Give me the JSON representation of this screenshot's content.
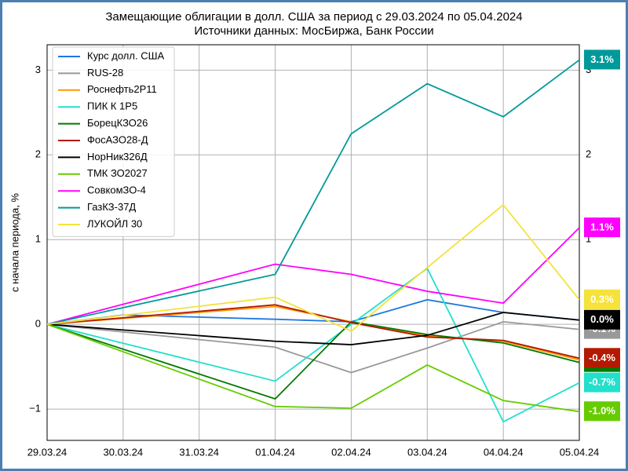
{
  "chart_data": {
    "type": "line",
    "title": "Замещающие облигации в долл. США за период с 29.03.2024 по 05.04.2024",
    "subtitle": "Источники данных: МосБиржа, Банк России",
    "y_label": "с начала периода, %",
    "categories": [
      "29.03.24",
      "30.03.24",
      "31.03.24",
      "01.04.24",
      "02.04.24",
      "03.04.24",
      "04.04.24",
      "05.04.24"
    ],
    "ylim": [
      -1.37,
      3.3
    ],
    "yticks": [
      {
        "value": -1,
        "label": "−1"
      },
      0,
      1,
      2,
      3
    ],
    "grid": true,
    "legend": "upper left",
    "series": [
      {
        "name": "Курс долл. США",
        "color": "#1f77e0",
        "x": [
          "29.03.24",
          "30.03.24",
          "01.04.24",
          "02.04.24",
          "03.04.24",
          "04.04.24",
          "05.04.24"
        ],
        "values": [
          0,
          0.11,
          0.06,
          0.03,
          0.29,
          0.14,
          0.05
        ]
      },
      {
        "name": "RUS-28",
        "color": "#999999",
        "x": [
          "29.03.24",
          "01.04.24",
          "02.04.24",
          "03.04.24",
          "04.04.24",
          "05.04.24"
        ],
        "values": [
          0,
          -0.27,
          -0.57,
          -0.28,
          0.03,
          -0.06
        ],
        "value_labels": [
          null,
          null,
          null,
          null,
          null,
          "-0.1%"
        ]
      },
      {
        "name": "Роснефть2Р11",
        "color": "#ff9900",
        "x": [
          "29.03.24",
          "01.04.24",
          "02.04.24",
          "03.04.24",
          "04.04.24",
          "05.04.24"
        ],
        "values": [
          0,
          0.21,
          0.03,
          -0.14,
          -0.2,
          -0.42
        ],
        "value_labels": [
          null,
          null,
          null,
          null,
          null,
          "-0.4%"
        ]
      },
      {
        "name": "ПИК К 1Р5",
        "color": "#22e0cc",
        "x": [
          "29.03.24",
          "01.04.24",
          "02.04.24",
          "03.04.24",
          "04.04.24",
          "05.04.24"
        ],
        "values": [
          0,
          -0.67,
          0.0,
          0.66,
          -1.15,
          -0.69
        ],
        "value_labels": [
          null,
          null,
          null,
          null,
          null,
          "-0.7%"
        ]
      },
      {
        "name": "БорецКЗО26",
        "color": "#007a00",
        "x": [
          "29.03.24",
          "01.04.24",
          "02.04.24",
          "03.04.24",
          "04.04.24",
          "05.04.24"
        ],
        "values": [
          0,
          -0.88,
          0.03,
          -0.12,
          -0.22,
          -0.45
        ],
        "value_labels": [
          null,
          null,
          null,
          null,
          null,
          "-0.4%"
        ]
      },
      {
        "name": "ФосАЗО28-Д",
        "color": "#b31a00",
        "x": [
          "29.03.24",
          "01.04.24",
          "02.04.24",
          "03.04.24",
          "04.04.24",
          "05.04.24"
        ],
        "values": [
          0,
          0.23,
          0.02,
          -0.15,
          -0.19,
          -0.4
        ],
        "value_labels": [
          null,
          null,
          null,
          null,
          null,
          "-0.4%"
        ]
      },
      {
        "name": "НорНик326Д",
        "color": "#000000",
        "x": [
          "29.03.24",
          "01.04.24",
          "02.04.24",
          "03.04.24",
          "04.04.24",
          "05.04.24"
        ],
        "values": [
          0,
          -0.2,
          -0.24,
          -0.13,
          0.14,
          0.05
        ],
        "value_labels": [
          null,
          null,
          null,
          null,
          null,
          "0.0%"
        ]
      },
      {
        "name": "ТМК ЗО2027",
        "color": "#66cc00",
        "x": [
          "29.03.24",
          "01.04.24",
          "02.04.24",
          "03.04.24",
          "04.04.24",
          "05.04.24"
        ],
        "values": [
          0,
          -0.97,
          -0.99,
          -0.48,
          -0.9,
          -1.03
        ],
        "value_labels": [
          null,
          null,
          null,
          null,
          null,
          "-1.0%"
        ]
      },
      {
        "name": "СовкомЗО-4",
        "color": "#ff00ff",
        "x": [
          "29.03.24",
          "01.04.24",
          "02.04.24",
          "03.04.24",
          "04.04.24",
          "05.04.24"
        ],
        "values": [
          0,
          0.71,
          0.59,
          0.39,
          0.25,
          1.14
        ],
        "value_labels": [
          null,
          null,
          null,
          null,
          null,
          "1.1%"
        ]
      },
      {
        "name": "ГазКЗ-37Д",
        "color": "#00999a",
        "x": [
          "29.03.24",
          "01.04.24",
          "02.04.24",
          "03.04.24",
          "04.04.24",
          "05.04.24"
        ],
        "values": [
          0,
          0.59,
          2.25,
          2.84,
          2.45,
          3.12
        ],
        "value_labels": [
          null,
          null,
          null,
          null,
          null,
          "3.1%"
        ]
      },
      {
        "name": "ЛУКОЙЛ 30",
        "color": "#f5e23a",
        "x": [
          "29.03.24",
          "01.04.24",
          "02.04.24",
          "03.04.24",
          "04.04.24",
          "05.04.24"
        ],
        "values": [
          0,
          0.32,
          -0.08,
          0.67,
          1.41,
          0.29
        ],
        "value_labels": [
          null,
          null,
          null,
          null,
          null,
          "0.3%"
        ]
      }
    ]
  }
}
